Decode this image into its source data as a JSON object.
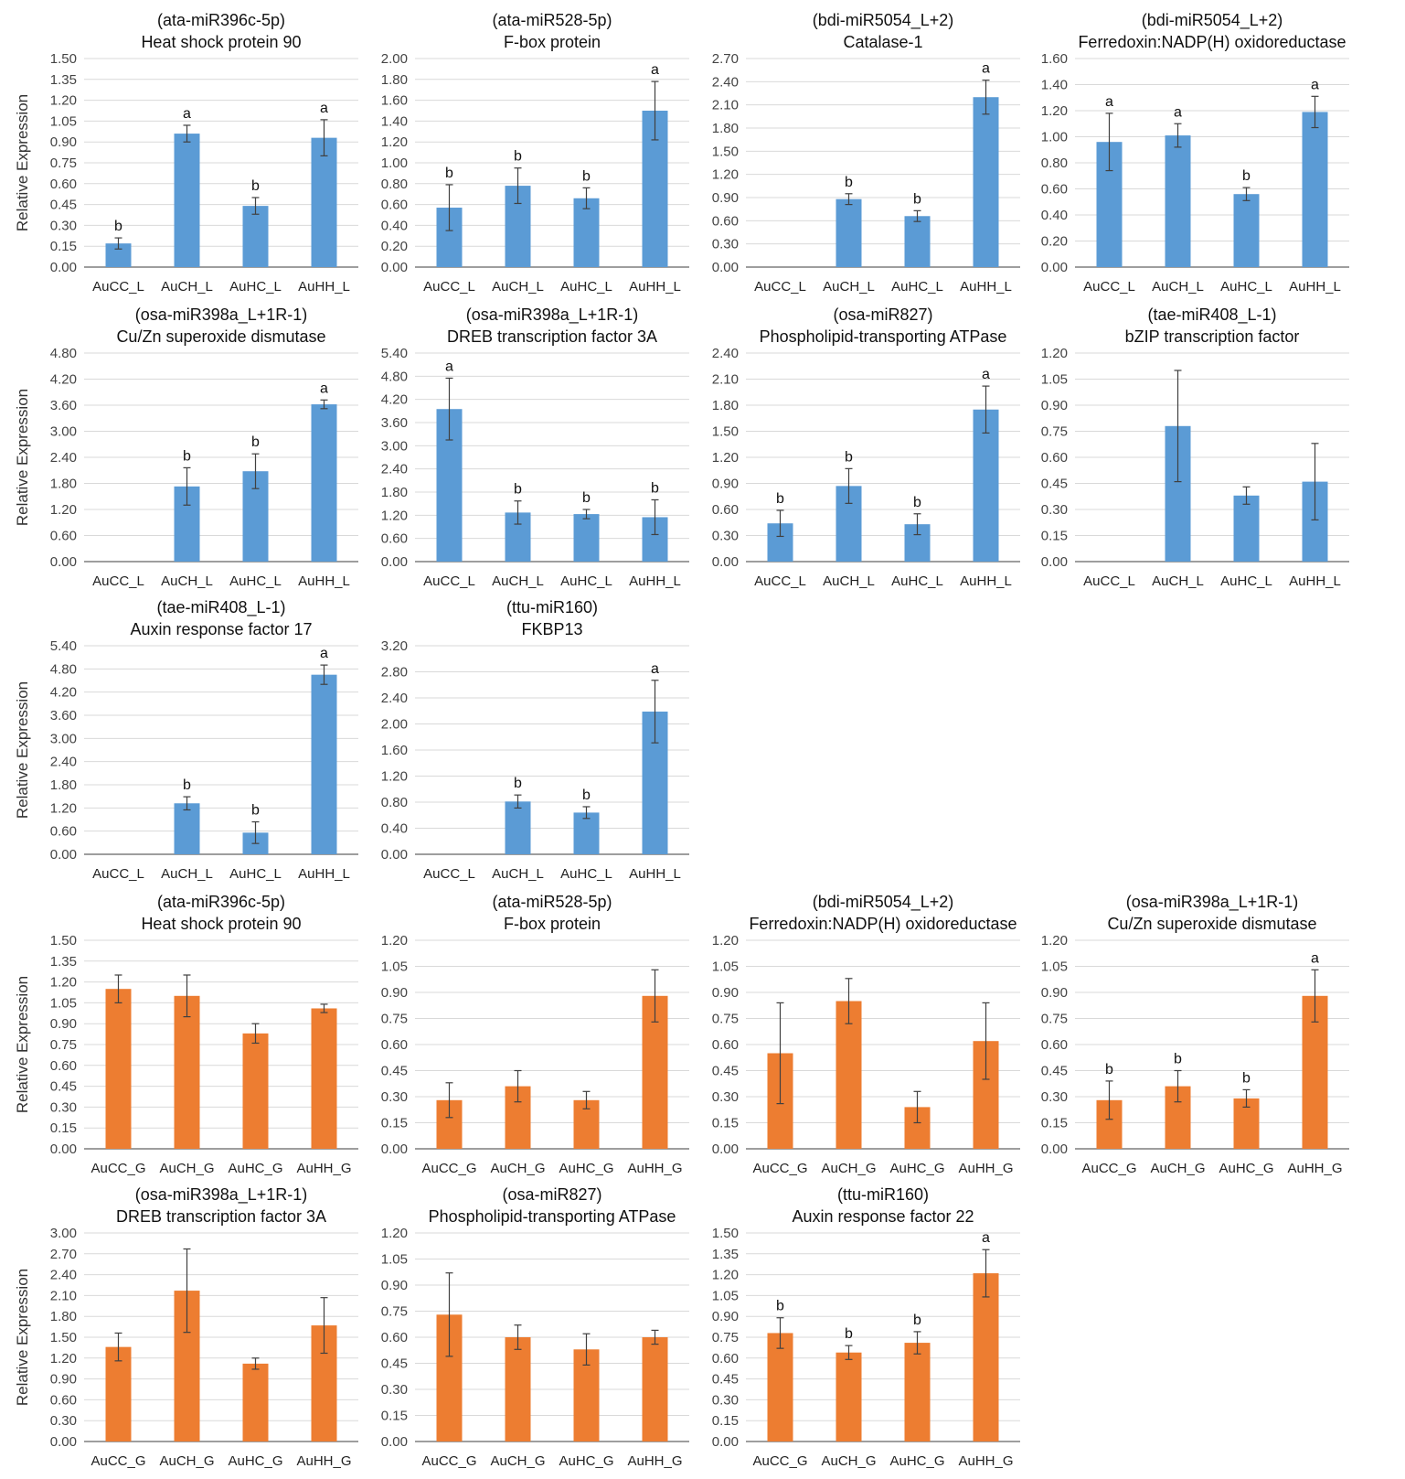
{
  "colors": {
    "leaf": "#5b9bd5",
    "grain": "#ed7d31",
    "grid": "#d9d9d9",
    "axis": "#7f7f7f",
    "error": "#404040"
  },
  "chart_data": [
    {
      "type": "bar",
      "title": [
        "(ata-miR396c-5p)",
        "Heat shock protein 90"
      ],
      "ylabel": "Relative Expression",
      "categories": [
        "AuCC_L",
        "AuCH_L",
        "AuHC_L",
        "AuHH_L"
      ],
      "values": [
        0.17,
        0.96,
        0.44,
        0.93
      ],
      "errors": [
        0.04,
        0.06,
        0.06,
        0.13
      ],
      "letters": [
        "b",
        "a",
        "b",
        "a"
      ],
      "ylim": [
        0,
        1.5
      ],
      "ystep": 0.15,
      "series_color": "leaf"
    },
    {
      "type": "bar",
      "title": [
        "(ata-miR528-5p)",
        "F-box protein"
      ],
      "ylabel": "",
      "categories": [
        "AuCC_L",
        "AuCH_L",
        "AuHC_L",
        "AuHH_L"
      ],
      "values": [
        0.57,
        0.78,
        0.66,
        1.5
      ],
      "errors": [
        0.22,
        0.17,
        0.1,
        0.28
      ],
      "letters": [
        "b",
        "b",
        "b",
        "a"
      ],
      "ylim": [
        0,
        2.0
      ],
      "ystep": 0.2,
      "series_color": "leaf"
    },
    {
      "type": "bar",
      "title": [
        "(bdi-miR5054_L+2)",
        "Catalase-1"
      ],
      "ylabel": "",
      "categories": [
        "AuCC_L",
        "AuCH_L",
        "AuHC_L",
        "AuHH_L"
      ],
      "values": [
        0,
        0.88,
        0.66,
        2.2
      ],
      "errors": [
        0,
        0.07,
        0.07,
        0.22
      ],
      "letters": [
        "",
        "b",
        "b",
        "a"
      ],
      "ylim": [
        0,
        2.7
      ],
      "ystep": 0.3,
      "series_color": "leaf"
    },
    {
      "type": "bar",
      "title": [
        "(bdi-miR5054_L+2)",
        "Ferredoxin:NADP(H) oxidoreductase"
      ],
      "ylabel": "",
      "categories": [
        "AuCC_L",
        "AuCH_L",
        "AuHC_L",
        "AuHH_L"
      ],
      "values": [
        0.96,
        1.01,
        0.56,
        1.19
      ],
      "errors": [
        0.22,
        0.09,
        0.05,
        0.12
      ],
      "letters": [
        "a",
        "a",
        "b",
        "a"
      ],
      "ylim": [
        0,
        1.6
      ],
      "ystep": 0.2,
      "series_color": "leaf"
    },
    {
      "type": "bar",
      "title": [
        "(osa-miR398a_L+1R-1)",
        "Cu/Zn superoxide dismutase"
      ],
      "ylabel": "Relative Expression",
      "categories": [
        "AuCC_L",
        "AuCH_L",
        "AuHC_L",
        "AuHH_L"
      ],
      "values": [
        0,
        1.73,
        2.08,
        3.62
      ],
      "errors": [
        0,
        0.43,
        0.4,
        0.1
      ],
      "letters": [
        "",
        "b",
        "b",
        "a"
      ],
      "ylim": [
        0,
        4.8
      ],
      "ystep": 0.6,
      "series_color": "leaf"
    },
    {
      "type": "bar",
      "title": [
        "(osa-miR398a_L+1R-1)",
        "DREB transcription factor 3A"
      ],
      "ylabel": "",
      "categories": [
        "AuCC_L",
        "AuCH_L",
        "AuHC_L",
        "AuHH_L"
      ],
      "values": [
        3.95,
        1.27,
        1.23,
        1.15
      ],
      "errors": [
        0.8,
        0.3,
        0.12,
        0.45
      ],
      "letters": [
        "a",
        "b",
        "b",
        "b"
      ],
      "ylim": [
        0,
        5.4
      ],
      "ystep": 0.6,
      "series_color": "leaf"
    },
    {
      "type": "bar",
      "title": [
        "(osa-miR827)",
        "Phospholipid-transporting ATPase"
      ],
      "ylabel": "",
      "categories": [
        "AuCC_L",
        "AuCH_L",
        "AuHC_L",
        "AuHH_L"
      ],
      "values": [
        0.44,
        0.87,
        0.43,
        1.75
      ],
      "errors": [
        0.15,
        0.2,
        0.12,
        0.27
      ],
      "letters": [
        "b",
        "b",
        "b",
        "a"
      ],
      "ylim": [
        0,
        2.4
      ],
      "ystep": 0.3,
      "series_color": "leaf"
    },
    {
      "type": "bar",
      "title": [
        "(tae-miR408_L-1)",
        "bZIP transcription factor"
      ],
      "ylabel": "",
      "categories": [
        "AuCC_L",
        "AuCH_L",
        "AuHC_L",
        "AuHH_L"
      ],
      "values": [
        0,
        0.78,
        0.38,
        0.46
      ],
      "errors": [
        0,
        0.32,
        0.05,
        0.22
      ],
      "letters": [
        "",
        "",
        "",
        ""
      ],
      "ylim": [
        0,
        1.2
      ],
      "ystep": 0.15,
      "series_color": "leaf"
    },
    {
      "type": "bar",
      "title": [
        "(tae-miR408_L-1)",
        "Auxin response factor 17"
      ],
      "ylabel": "Relative Expression",
      "categories": [
        "AuCC_L",
        "AuCH_L",
        "AuHC_L",
        "AuHH_L"
      ],
      "values": [
        0,
        1.32,
        0.56,
        4.65
      ],
      "errors": [
        0,
        0.17,
        0.28,
        0.25
      ],
      "letters": [
        "",
        "b",
        "b",
        "a"
      ],
      "ylim": [
        0,
        5.4
      ],
      "ystep": 0.6,
      "series_color": "leaf"
    },
    {
      "type": "bar",
      "title": [
        "(ttu-miR160)",
        "FKBP13"
      ],
      "ylabel": "",
      "categories": [
        "AuCC_L",
        "AuCH_L",
        "AuHC_L",
        "AuHH_L"
      ],
      "values": [
        0,
        0.81,
        0.64,
        2.19
      ],
      "errors": [
        0,
        0.1,
        0.09,
        0.48
      ],
      "letters": [
        "",
        "b",
        "b",
        "a"
      ],
      "ylim": [
        0,
        3.2
      ],
      "ystep": 0.4,
      "series_color": "leaf"
    },
    {
      "type": "bar",
      "title": [
        "(ata-miR396c-5p)",
        "Heat shock protein 90"
      ],
      "ylabel": "Relative Expression",
      "categories": [
        "AuCC_G",
        "AuCH_G",
        "AuHC_G",
        "AuHH_G"
      ],
      "values": [
        1.15,
        1.1,
        0.83,
        1.01
      ],
      "errors": [
        0.1,
        0.15,
        0.07,
        0.03
      ],
      "letters": [
        "",
        "",
        "",
        ""
      ],
      "ylim": [
        0,
        1.5
      ],
      "ystep": 0.15,
      "series_color": "grain"
    },
    {
      "type": "bar",
      "title": [
        "(ata-miR528-5p)",
        "F-box protein"
      ],
      "ylabel": "",
      "categories": [
        "AuCC_G",
        "AuCH_G",
        "AuHC_G",
        "AuHH_G"
      ],
      "values": [
        0.28,
        0.36,
        0.28,
        0.88
      ],
      "errors": [
        0.1,
        0.09,
        0.05,
        0.15
      ],
      "letters": [
        "",
        "",
        "",
        ""
      ],
      "ylim": [
        0,
        1.2
      ],
      "ystep": 0.15,
      "series_color": "grain"
    },
    {
      "type": "bar",
      "title": [
        "(bdi-miR5054_L+2)",
        "Ferredoxin:NADP(H) oxidoreductase"
      ],
      "ylabel": "",
      "categories": [
        "AuCC_G",
        "AuCH_G",
        "AuHC_G",
        "AuHH_G"
      ],
      "values": [
        0.55,
        0.85,
        0.24,
        0.62
      ],
      "errors": [
        0.29,
        0.13,
        0.09,
        0.22
      ],
      "letters": [
        "",
        "",
        "",
        ""
      ],
      "ylim": [
        0,
        1.2
      ],
      "ystep": 0.15,
      "series_color": "grain"
    },
    {
      "type": "bar",
      "title": [
        "(osa-miR398a_L+1R-1)",
        "Cu/Zn superoxide dismutase"
      ],
      "ylabel": "",
      "categories": [
        "AuCC_G",
        "AuCH_G",
        "AuHC_G",
        "AuHH_G"
      ],
      "values": [
        0.28,
        0.36,
        0.29,
        0.88
      ],
      "errors": [
        0.11,
        0.09,
        0.05,
        0.15
      ],
      "letters": [
        "b",
        "b",
        "b",
        "a"
      ],
      "ylim": [
        0,
        1.2
      ],
      "ystep": 0.15,
      "series_color": "grain"
    },
    {
      "type": "bar",
      "title": [
        "(osa-miR398a_L+1R-1)",
        "DREB transcription factor 3A"
      ],
      "ylabel": "Relative Expression",
      "categories": [
        "AuCC_G",
        "AuCH_G",
        "AuHC_G",
        "AuHH_G"
      ],
      "values": [
        1.36,
        2.17,
        1.12,
        1.67
      ],
      "errors": [
        0.2,
        0.6,
        0.08,
        0.4
      ],
      "letters": [
        "",
        "",
        "",
        ""
      ],
      "ylim": [
        0,
        3.0
      ],
      "ystep": 0.3,
      "series_color": "grain"
    },
    {
      "type": "bar",
      "title": [
        "(osa-miR827)",
        "Phospholipid-transporting ATPase"
      ],
      "ylabel": "",
      "categories": [
        "AuCC_G",
        "AuCH_G",
        "AuHC_G",
        "AuHH_G"
      ],
      "values": [
        0.73,
        0.6,
        0.53,
        0.6
      ],
      "errors": [
        0.24,
        0.07,
        0.09,
        0.04
      ],
      "letters": [
        "",
        "",
        "",
        ""
      ],
      "ylim": [
        0,
        1.2
      ],
      "ystep": 0.15,
      "series_color": "grain"
    },
    {
      "type": "bar",
      "title": [
        "(ttu-miR160)",
        "Auxin response factor 22"
      ],
      "ylabel": "",
      "categories": [
        "AuCC_G",
        "AuCH_G",
        "AuHC_G",
        "AuHH_G"
      ],
      "values": [
        0.78,
        0.64,
        0.71,
        1.21
      ],
      "errors": [
        0.11,
        0.05,
        0.08,
        0.17
      ],
      "letters": [
        "b",
        "b",
        "b",
        "a"
      ],
      "ylim": [
        0,
        1.5
      ],
      "ystep": 0.15,
      "series_color": "grain"
    }
  ]
}
